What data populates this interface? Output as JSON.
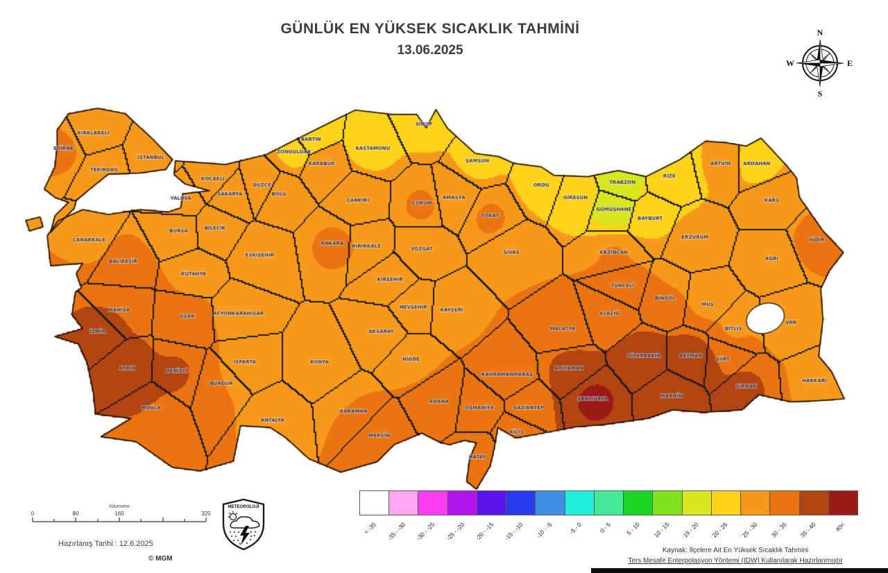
{
  "title": {
    "line1": "GÜNLÜK EN YÜKSEK SICAKLIK TAHMİNİ",
    "line2": "13.06.2025"
  },
  "compass": {
    "n": "N",
    "e": "E",
    "s": "S",
    "w": "W"
  },
  "scalebar": {
    "title": "Kilometre",
    "ticks": [
      "0",
      "80",
      "160",
      "320"
    ]
  },
  "prepared": "Hazırlanış Tarihi : 12.6.2025",
  "copyright": "© MGM",
  "logo_text": "METEOROLOJİ",
  "source": {
    "line1": "Kaynak: İlçelere Ait En Yüksek Sıcaklık Tahmini",
    "line2": "Ters Mesafe Enterpolasyon Yöntemi (IDW) Kullanılarak Hazırlanmıştır"
  },
  "legend": [
    {
      "label": "< -35",
      "min": -999,
      "color": "#ffffff"
    },
    {
      "label": "-35 - -30",
      "min": -35,
      "color": "#ffa6f2"
    },
    {
      "label": "-30 - -25",
      "min": -30,
      "color": "#ff3df0"
    },
    {
      "label": "-25 - -20",
      "min": -25,
      "color": "#b515ed"
    },
    {
      "label": "-20 - -15",
      "min": -20,
      "color": "#5b13e8"
    },
    {
      "label": "-15 - -10",
      "min": -15,
      "color": "#2a3be8"
    },
    {
      "label": "-10 - -5",
      "min": -10,
      "color": "#3f8fe8"
    },
    {
      "label": "-5 - 0",
      "min": -5,
      "color": "#21f0dc"
    },
    {
      "label": "0 - 5",
      "min": 0,
      "color": "#45e998"
    },
    {
      "label": "5 - 10",
      "min": 5,
      "color": "#1bd527"
    },
    {
      "label": "10 - 15",
      "min": 10,
      "color": "#7fe21c"
    },
    {
      "label": "15 - 20",
      "min": 15,
      "color": "#d7e61e"
    },
    {
      "label": "20 - 25",
      "min": 20,
      "color": "#ffd21c"
    },
    {
      "label": "25 - 30",
      "min": 25,
      "color": "#f8991b"
    },
    {
      "label": "30 - 35",
      "min": 30,
      "color": "#e87412"
    },
    {
      "label": "35 - 40",
      "min": 35,
      "color": "#b24511"
    },
    {
      "label": "40<",
      "min": 40,
      "color": "#9c1a15"
    }
  ],
  "provinces": [
    {
      "name": "EDİRNE",
      "lon": 26.5,
      "lat": 41.4,
      "t": 31
    },
    {
      "name": "KIRKLARELİ",
      "lon": 27.2,
      "lat": 41.65,
      "t": 27
    },
    {
      "name": "TEKİRDAĞ",
      "lon": 27.45,
      "lat": 41.05,
      "t": 28
    },
    {
      "name": "İSTANBUL",
      "lon": 28.55,
      "lat": 41.25,
      "t": 27
    },
    {
      "name": "KOCAELİ",
      "lon": 30.0,
      "lat": 40.9,
      "t": 28
    },
    {
      "name": "YALOVA",
      "lon": 29.25,
      "lat": 40.58,
      "t": 28
    },
    {
      "name": "SAKARYA",
      "lon": 30.4,
      "lat": 40.65,
      "t": 28
    },
    {
      "name": "BURSA",
      "lon": 29.2,
      "lat": 40.05,
      "t": 29
    },
    {
      "name": "BİLECİK",
      "lon": 30.05,
      "lat": 40.1,
      "t": 28
    },
    {
      "name": "ÇANAKKALE",
      "lon": 27.1,
      "lat": 39.9,
      "t": 29
    },
    {
      "name": "BALIKESİR",
      "lon": 27.9,
      "lat": 39.55,
      "t": 31
    },
    {
      "name": "DÜZCE",
      "lon": 31.15,
      "lat": 40.8,
      "t": 27
    },
    {
      "name": "BOLU",
      "lon": 31.55,
      "lat": 40.65,
      "t": 26
    },
    {
      "name": "ZONGULDAK",
      "lon": 31.9,
      "lat": 41.35,
      "t": 24
    },
    {
      "name": "BARTIN",
      "lon": 32.3,
      "lat": 41.55,
      "t": 24
    },
    {
      "name": "KARABÜK",
      "lon": 32.55,
      "lat": 41.15,
      "t": 26
    },
    {
      "name": "KASTAMONU",
      "lon": 33.75,
      "lat": 41.4,
      "t": 23
    },
    {
      "name": "ÇANKIRI",
      "lon": 33.4,
      "lat": 40.55,
      "t": 28
    },
    {
      "name": "ANKARA",
      "lon": 32.8,
      "lat": 39.85,
      "t": 31
    },
    {
      "name": "ESKİŞEHİR",
      "lon": 31.1,
      "lat": 39.65,
      "t": 29
    },
    {
      "name": "KÜTAHYA",
      "lon": 29.55,
      "lat": 39.35,
      "t": 29
    },
    {
      "name": "MANİSA",
      "lon": 27.8,
      "lat": 38.75,
      "t": 35
    },
    {
      "name": "İZMİR",
      "lon": 27.3,
      "lat": 38.4,
      "t": 37
    },
    {
      "name": "UŞAK",
      "lon": 29.4,
      "lat": 38.65,
      "t": 31
    },
    {
      "name": "AYDIN",
      "lon": 28.0,
      "lat": 37.8,
      "t": 38
    },
    {
      "name": "DENİZLİ",
      "lon": 29.15,
      "lat": 37.75,
      "t": 36
    },
    {
      "name": "MUĞLA",
      "lon": 28.55,
      "lat": 37.15,
      "t": 35
    },
    {
      "name": "AFYONKARAHİSAR",
      "lon": 30.6,
      "lat": 38.7,
      "t": 29
    },
    {
      "name": "ISPARTA",
      "lon": 30.75,
      "lat": 37.9,
      "t": 28
    },
    {
      "name": "BURDUR",
      "lon": 30.2,
      "lat": 37.55,
      "t": 30
    },
    {
      "name": "ANTALYA",
      "lon": 31.4,
      "lat": 36.95,
      "t": 29
    },
    {
      "name": "KONYA",
      "lon": 32.5,
      "lat": 37.9,
      "t": 29
    },
    {
      "name": "KARAMAN",
      "lon": 33.3,
      "lat": 37.1,
      "t": 30
    },
    {
      "name": "MERSİN",
      "lon": 33.9,
      "lat": 36.7,
      "t": 31
    },
    {
      "name": "ADANA",
      "lon": 35.3,
      "lat": 37.25,
      "t": 32
    },
    {
      "name": "OSMANİYE",
      "lon": 36.25,
      "lat": 37.15,
      "t": 32
    },
    {
      "name": "HATAY",
      "lon": 36.2,
      "lat": 36.35,
      "t": 31
    },
    {
      "name": "KİLİS",
      "lon": 37.12,
      "lat": 36.75,
      "t": 35
    },
    {
      "name": "GAZİANTEP",
      "lon": 37.4,
      "lat": 37.15,
      "t": 34
    },
    {
      "name": "KAHRAMANMARAŞ",
      "lon": 36.9,
      "lat": 37.7,
      "t": 32
    },
    {
      "name": "ŞANLIURFA",
      "lon": 38.9,
      "lat": 37.3,
      "t": 42
    },
    {
      "name": "ADIYAMAN",
      "lon": 38.35,
      "lat": 37.8,
      "t": 36
    },
    {
      "name": "MALATYA",
      "lon": 38.2,
      "lat": 38.45,
      "t": 34
    },
    {
      "name": "ELAZIĞ",
      "lon": 39.3,
      "lat": 38.7,
      "t": 33
    },
    {
      "name": "DİYARBAKIR",
      "lon": 40.1,
      "lat": 38.0,
      "t": 39
    },
    {
      "name": "MARDİN",
      "lon": 40.75,
      "lat": 37.35,
      "t": 38
    },
    {
      "name": "BATMAN",
      "lon": 41.2,
      "lat": 38.0,
      "t": 39
    },
    {
      "name": "SİİRT",
      "lon": 41.95,
      "lat": 37.95,
      "t": 35
    },
    {
      "name": "ŞIRNAK",
      "lon": 42.5,
      "lat": 37.5,
      "t": 36
    },
    {
      "name": "HAKKARİ",
      "lon": 44.1,
      "lat": 37.6,
      "t": 28
    },
    {
      "name": "VAN",
      "lon": 43.55,
      "lat": 38.55,
      "t": 25
    },
    {
      "name": "BİTLİS",
      "lon": 42.2,
      "lat": 38.45,
      "t": 29
    },
    {
      "name": "MUŞ",
      "lon": 41.6,
      "lat": 38.85,
      "t": 29
    },
    {
      "name": "BİNGÖL",
      "lon": 40.6,
      "lat": 38.95,
      "t": 30
    },
    {
      "name": "TUNCELİ",
      "lon": 39.6,
      "lat": 39.15,
      "t": 33
    },
    {
      "name": "ERZİNCAN",
      "lon": 39.4,
      "lat": 39.7,
      "t": 31
    },
    {
      "name": "ERZURUM",
      "lon": 41.3,
      "lat": 39.95,
      "t": 26
    },
    {
      "name": "BAYBURT",
      "lon": 40.25,
      "lat": 40.25,
      "t": 24
    },
    {
      "name": "GÜMÜŞHANE",
      "lon": 39.4,
      "lat": 40.4,
      "t": 14
    },
    {
      "name": "TRABZON",
      "lon": 39.6,
      "lat": 40.85,
      "t": 18
    },
    {
      "name": "RİZE",
      "lon": 40.7,
      "lat": 40.95,
      "t": 21
    },
    {
      "name": "ARTVİN",
      "lon": 41.9,
      "lat": 41.15,
      "t": 26
    },
    {
      "name": "ARDAHAN",
      "lon": 42.75,
      "lat": 41.15,
      "t": 24
    },
    {
      "name": "KARS",
      "lon": 43.1,
      "lat": 40.55,
      "t": 26
    },
    {
      "name": "IĞDIR",
      "lon": 44.15,
      "lat": 39.9,
      "t": 33
    },
    {
      "name": "AĞRI",
      "lon": 43.1,
      "lat": 39.6,
      "t": 27
    },
    {
      "name": "SİVAS",
      "lon": 37.0,
      "lat": 39.7,
      "t": 29
    },
    {
      "name": "TOKAT",
      "lon": 36.5,
      "lat": 40.3,
      "t": 31
    },
    {
      "name": "AMASYA",
      "lon": 35.65,
      "lat": 40.6,
      "t": 28
    },
    {
      "name": "ÇORUM",
      "lon": 34.9,
      "lat": 40.5,
      "t": 31
    },
    {
      "name": "YOZGAT",
      "lon": 34.9,
      "lat": 39.75,
      "t": 28
    },
    {
      "name": "KIRIKKALE",
      "lon": 33.6,
      "lat": 39.8,
      "t": 30
    },
    {
      "name": "KIRŞEHİR",
      "lon": 34.15,
      "lat": 39.25,
      "t": 29
    },
    {
      "name": "NEVŞEHİR",
      "lon": 34.7,
      "lat": 38.8,
      "t": 29
    },
    {
      "name": "AKSARAY",
      "lon": 33.95,
      "lat": 38.4,
      "t": 29
    },
    {
      "name": "NİĞDE",
      "lon": 34.65,
      "lat": 37.95,
      "t": 29
    },
    {
      "name": "KAYSERİ",
      "lon": 35.6,
      "lat": 38.75,
      "t": 28
    },
    {
      "name": "SAMSUN",
      "lon": 36.2,
      "lat": 41.2,
      "t": 23
    },
    {
      "name": "SİNOP",
      "lon": 34.95,
      "lat": 41.8,
      "t": 23
    },
    {
      "name": "ORDU",
      "lon": 37.7,
      "lat": 40.8,
      "t": 22
    },
    {
      "name": "GİRESUN",
      "lon": 38.5,
      "lat": 40.6,
      "t": 22
    }
  ]
}
